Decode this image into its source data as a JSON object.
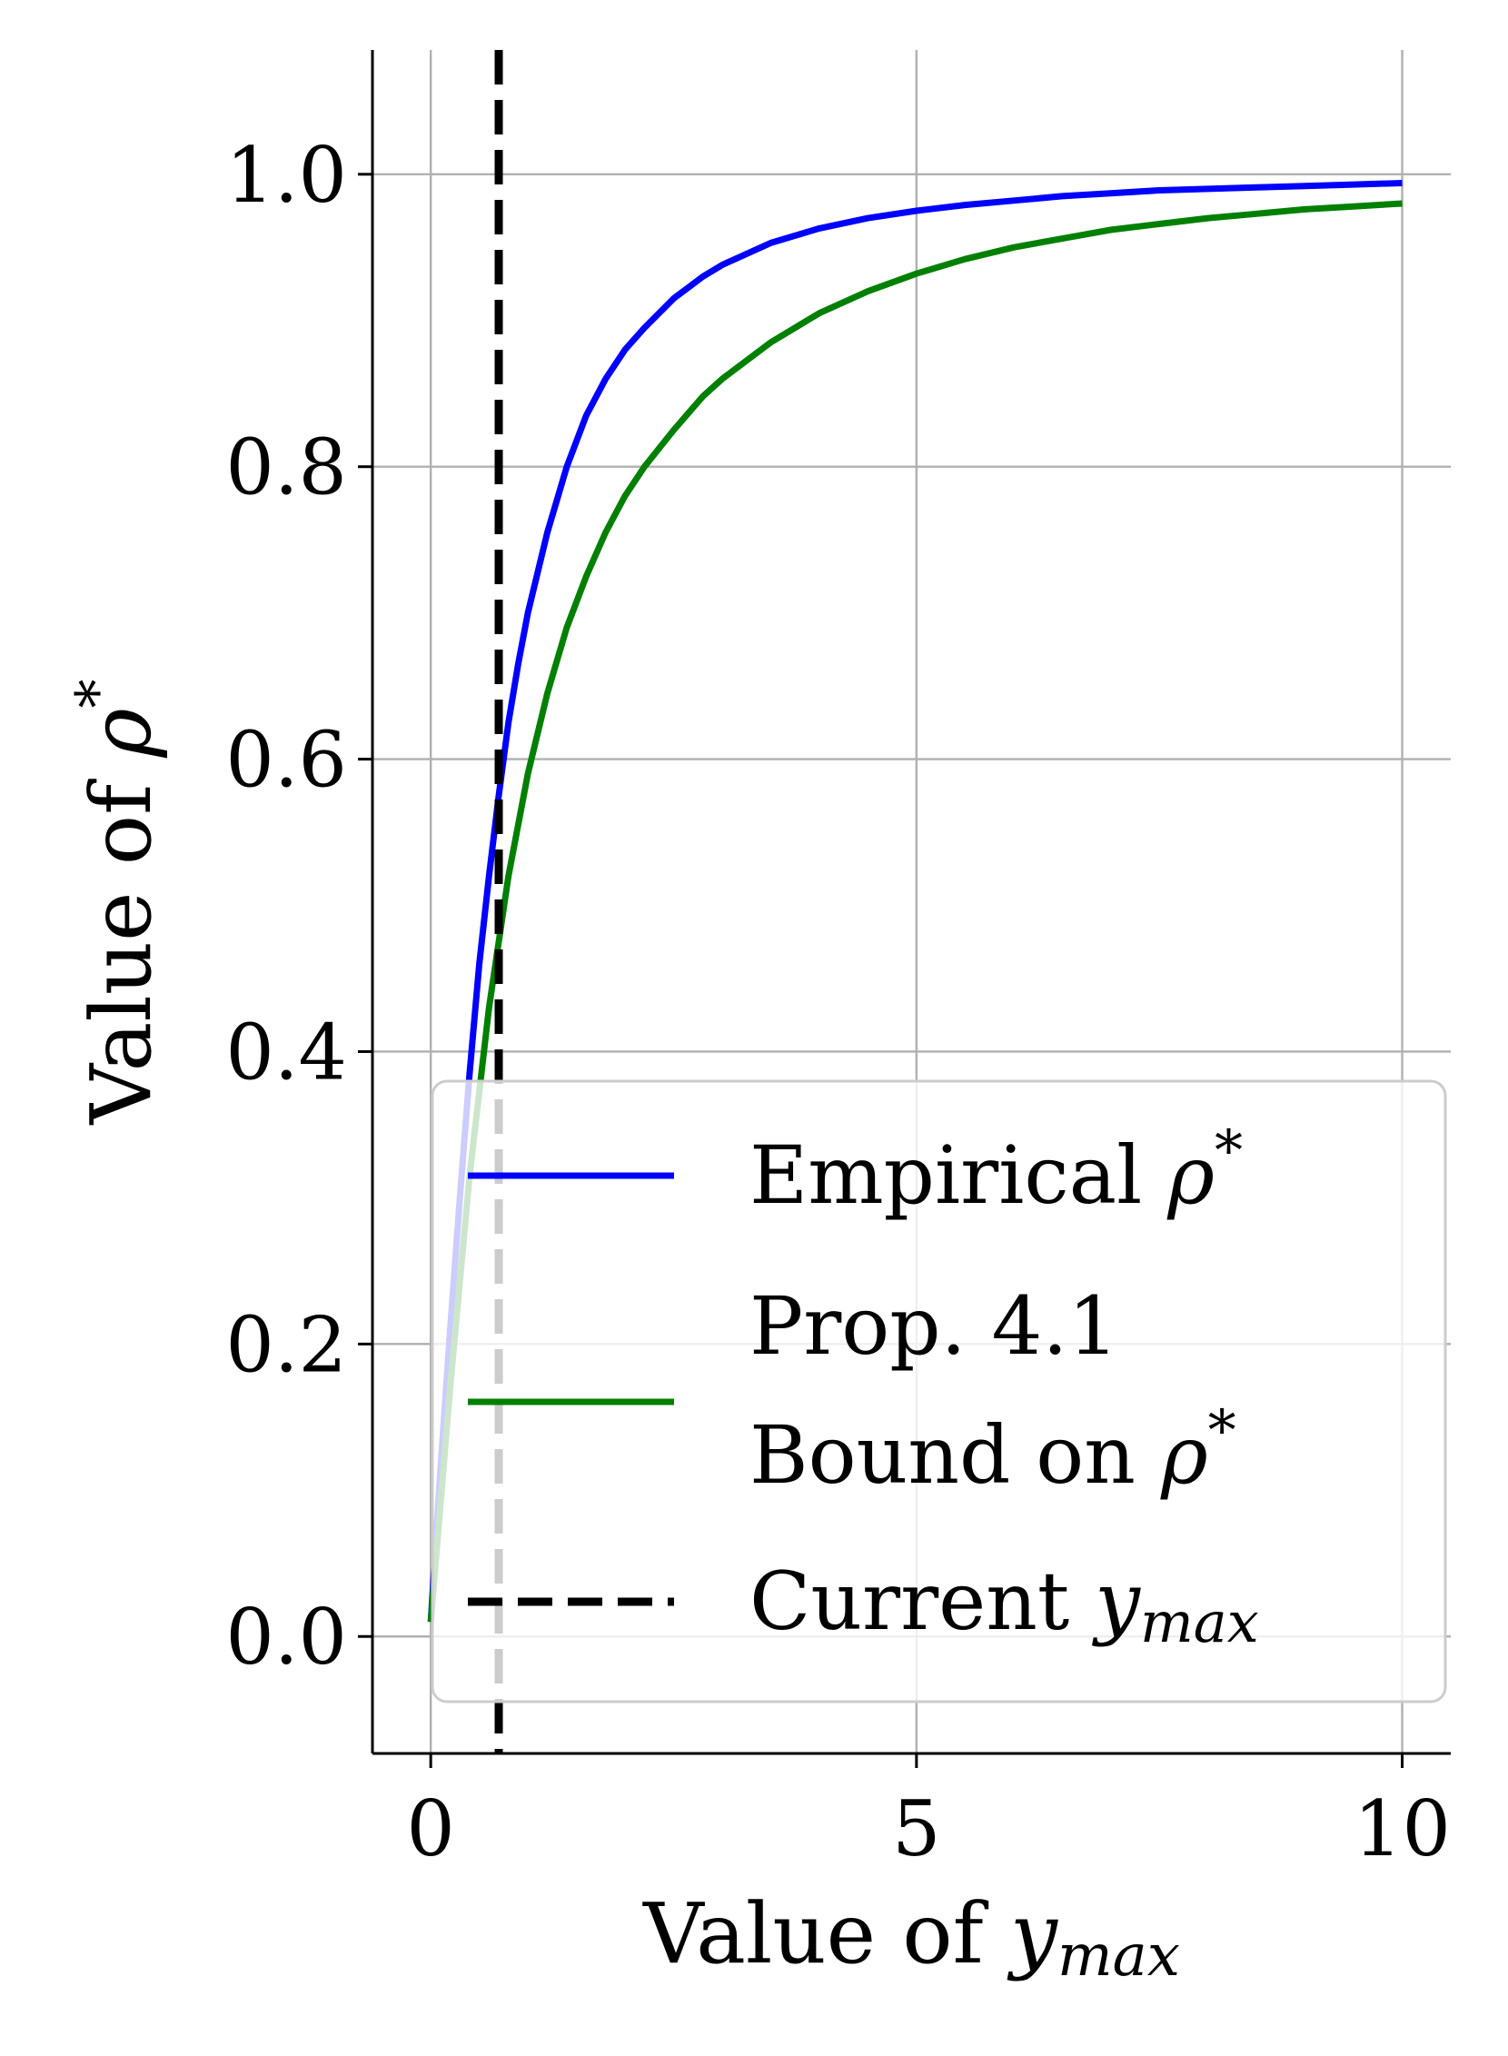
{
  "chart_data": {
    "type": "line",
    "xlabel": "Value of y_max",
    "xlabel_parts": {
      "prefix": "Value of ",
      "symbol": "y",
      "subscript": "max"
    },
    "ylabel": "Value of ρ*",
    "ylabel_parts": {
      "prefix": "Value of ",
      "symbol": "ρ",
      "superscript": "*"
    },
    "xlim": [
      -0.6,
      10.5
    ],
    "ylim": [
      -0.08,
      2.08
    ],
    "x_ticks": [
      0,
      5,
      10
    ],
    "x_tick_labels": [
      "0",
      "5",
      "10"
    ],
    "y_ticks": [
      0.0,
      0.2,
      0.4,
      0.6,
      0.8,
      1.0
    ],
    "y_tick_labels": [
      "0.0",
      "0.2",
      "0.4",
      "0.6",
      "0.8",
      "1.0"
    ],
    "ylim_display": [
      -0.08,
      1.085
    ],
    "grid": true,
    "legend_position": "lower-right",
    "series": [
      {
        "name": "Empirical ρ*",
        "name_parts": {
          "line1": "Empirical ",
          "symbol": "ρ",
          "superscript": "*"
        },
        "color": "#0000ff",
        "style": "solid",
        "x": [
          0,
          0.1,
          0.2,
          0.3,
          0.4,
          0.5,
          0.6,
          0.7,
          0.8,
          0.9,
          1.0,
          1.2,
          1.4,
          1.6,
          1.8,
          2.0,
          2.2,
          2.5,
          2.8,
          3.0,
          3.5,
          4.0,
          4.5,
          5.0,
          5.5,
          6.0,
          6.5,
          7.0,
          7.5,
          8.0,
          8.5,
          9.0,
          9.5,
          10.0
        ],
        "y": [
          0.01,
          0.115,
          0.21,
          0.3,
          0.385,
          0.46,
          0.52,
          0.575,
          0.625,
          0.665,
          0.7,
          0.755,
          0.8,
          0.835,
          0.86,
          0.88,
          0.895,
          0.915,
          0.93,
          0.938,
          0.953,
          0.963,
          0.97,
          0.975,
          0.979,
          0.982,
          0.985,
          0.987,
          0.989,
          0.99,
          0.991,
          0.992,
          0.993,
          0.994
        ]
      },
      {
        "name": "Prop. 4.1 Bound on ρ*",
        "name_parts": {
          "line1": "Prop. 4.1",
          "line2": "Bound on ",
          "symbol": "ρ",
          "superscript": "*"
        },
        "color": "#008000",
        "style": "solid",
        "x": [
          0,
          0.2,
          0.4,
          0.6,
          0.8,
          1.0,
          1.2,
          1.4,
          1.6,
          1.8,
          2.0,
          2.2,
          2.5,
          2.8,
          3.0,
          3.5,
          4.0,
          4.5,
          5.0,
          5.5,
          6.0,
          6.5,
          7.0,
          7.5,
          8.0,
          8.5,
          9.0,
          9.5,
          10.0
        ],
        "y": [
          0.01,
          0.17,
          0.315,
          0.43,
          0.52,
          0.59,
          0.645,
          0.69,
          0.725,
          0.755,
          0.78,
          0.8,
          0.825,
          0.848,
          0.86,
          0.885,
          0.905,
          0.92,
          0.932,
          0.942,
          0.95,
          0.956,
          0.962,
          0.966,
          0.97,
          0.973,
          0.976,
          0.978,
          0.98
        ]
      },
      {
        "name": "Current y_max",
        "name_parts": {
          "line1": "Current ",
          "symbol": "y",
          "subscript": "max"
        },
        "color": "#000000",
        "style": "dashed",
        "vertical_x": 0.7
      }
    ]
  }
}
